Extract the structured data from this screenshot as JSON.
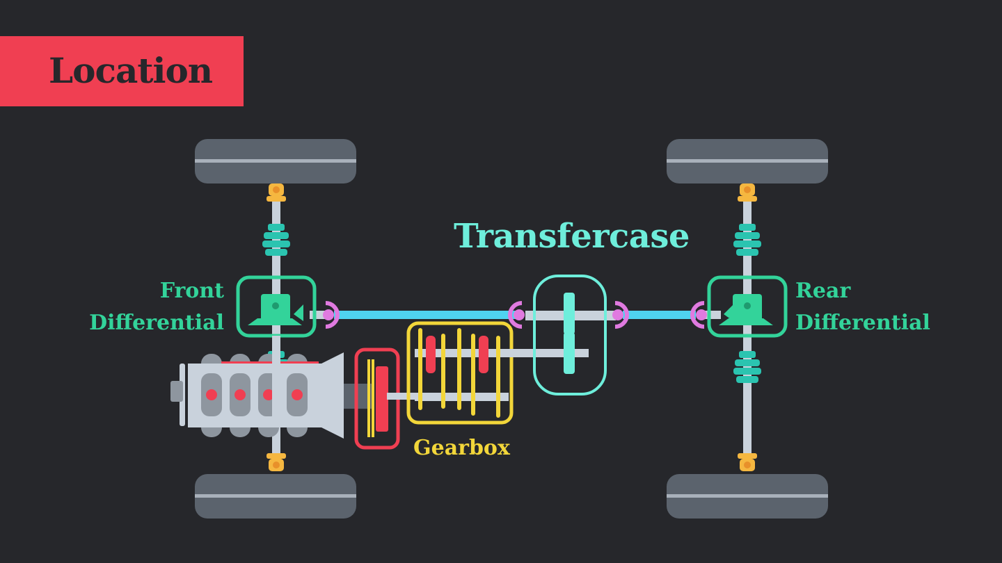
{
  "title": "Location",
  "labels": {
    "transfercase": "Transfercase",
    "gearbox": "Gearbox",
    "front_differential": [
      "Front",
      "Differential"
    ],
    "rear_differential": [
      "Rear",
      "Differential"
    ]
  },
  "colors": {
    "background": "#26272b",
    "title_banner": "#f03f52",
    "transfercase": "#6eeedb",
    "gearbox": "#f2d63a",
    "differential": "#33d39a",
    "clutch": "#f03f52",
    "driveshaft": "#4fd3f0",
    "joint": "#e07ae0",
    "tire": "#5b636d",
    "hub": "#f5b740",
    "cv_boot": "#2bc4b0"
  },
  "icons": [
    "tire-icon",
    "engine-icon",
    "differential-icon",
    "gear-icon",
    "universal-joint-icon"
  ]
}
